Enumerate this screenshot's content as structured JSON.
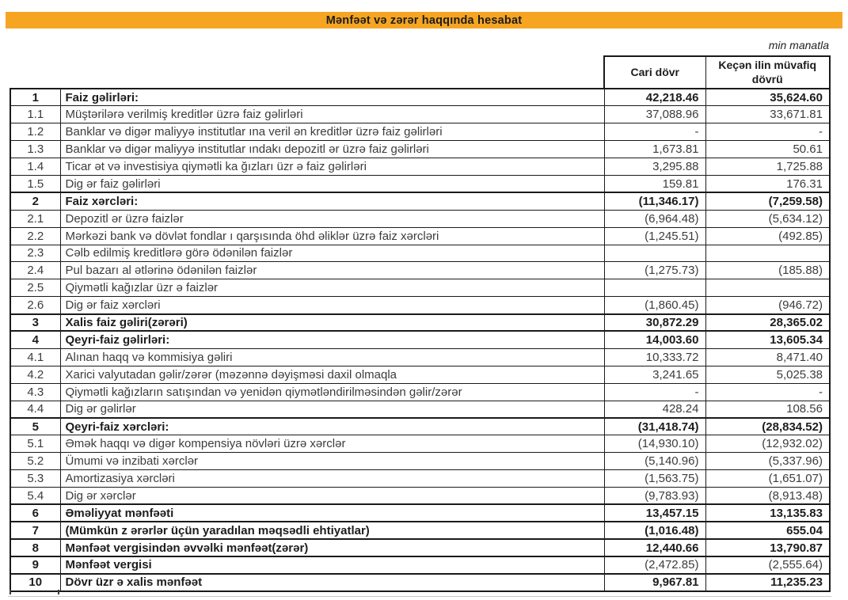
{
  "title": "Mənfəət və zərər haqqında hesabat",
  "unit_note": "min manatla",
  "columns": {
    "current": "Cari dövr",
    "previous": "Keçən ilin müvafiq dövrü"
  },
  "accent_color": "#f6a523",
  "rows": [
    {
      "no": "1",
      "label": "Faiz gəlirləri:",
      "current": "42,218.46",
      "previous": "35,624.60",
      "bold": true
    },
    {
      "no": "1.1",
      "label": "Müştərilərə verilmiş kreditlər üzrə faiz gəlirləri",
      "current": "37,088.96",
      "previous": "33,671.81"
    },
    {
      "no": "1.2",
      "label": "Banklar və digər maliyyə institutlar ına veril ən kreditlər üzrə faiz gəlirləri",
      "current": "-",
      "previous": "-"
    },
    {
      "no": "1.3",
      "label": "Banklar və digər maliyyə institutlar ındakı depozitl ər üzrə faiz gəlirləri",
      "current": "1,673.81",
      "previous": "50.61"
    },
    {
      "no": "1.4",
      "label": "Ticar ət və investisiya qiymətli ka ğızları üzr ə faiz gəlirləri",
      "current": "3,295.88",
      "previous": "1,725.88"
    },
    {
      "no": "1.5",
      "label": "Dig ər faiz gəlirləri",
      "current": "159.81",
      "previous": "176.31"
    },
    {
      "no": "2",
      "label": "Faiz xərcləri:",
      "current": "(11,346.17)",
      "previous": "(7,259.58)",
      "bold": true
    },
    {
      "no": "2.1",
      "label": "Depozitl ər üzrə faizlər",
      "current": "(6,964.48)",
      "previous": "(5,634.12)"
    },
    {
      "no": "2.2",
      "label": "Mərkəzi bank və dövlət fondlar ı qarşısında öhd əliklər üzrə faiz xərcləri",
      "current": "(1,245.51)",
      "previous": "(492.85)"
    },
    {
      "no": "2.3",
      "label": "Cəlb edilmiş kreditlərə görə ödənilən faizlər",
      "current": "",
      "previous": ""
    },
    {
      "no": "2.4",
      "label": "Pul bazarı al ətlərinə ödənilən faizlər",
      "current": "(1,275.73)",
      "previous": "(185.88)"
    },
    {
      "no": "2.5",
      "label": "Qiymətli kağızlar üzr ə faizlər",
      "current": "",
      "previous": ""
    },
    {
      "no": "2.6",
      "label": "Dig ər faiz xərcləri",
      "current": "(1,860.45)",
      "previous": "(946.72)"
    },
    {
      "no": "3",
      "label": "Xalis faiz gəliri(zərəri)",
      "current": "30,872.29",
      "previous": "28,365.02",
      "bold": true
    },
    {
      "no": "4",
      "label": "Qeyri-faiz gəlirləri:",
      "current": "14,003.60",
      "previous": "13,605.34",
      "bold": true
    },
    {
      "no": "4.1",
      "label": "Alınan haqq və kommisiya gəliri",
      "current": "10,333.72",
      "previous": "8,471.40"
    },
    {
      "no": "4.2",
      "label": "Xarici valyutadan gəlir/zərər (məzənnə dəyişməsi daxil olmaqla",
      "current": "3,241.65",
      "previous": "5,025.38"
    },
    {
      "no": "4.3",
      "label": "Qiymətli kağızların satışından və yenidən qiymətləndirilməsindən gəlir/zərər",
      "current": "-",
      "previous": "-"
    },
    {
      "no": "4.4",
      "label": "Dig ər gəlirlər",
      "current": "428.24",
      "previous": "108.56"
    },
    {
      "no": "5",
      "label": "Qeyri-faiz xərcləri:",
      "current": "(31,418.74)",
      "previous": "(28,834.52)",
      "bold": true
    },
    {
      "no": "5.1",
      "label": "Əmək haqqı və digər kompensiya növləri üzrə xərclər",
      "current": "(14,930.10)",
      "previous": "(12,932.02)"
    },
    {
      "no": "5.2",
      "label": "Ümumi və inzibati xərclər",
      "current": "(5,140.96)",
      "previous": "(5,337.96)"
    },
    {
      "no": "5.3",
      "label": "Amortizasiya xərcləri",
      "current": "(1,563.75)",
      "previous": "(1,651.07)"
    },
    {
      "no": "5.4",
      "label": "Dig ər xərclər",
      "current": "(9,783.93)",
      "previous": "(8,913.48)"
    },
    {
      "no": "6",
      "label": "Əməliyyat mənfəəti",
      "current": "13,457.15",
      "previous": "13,135.83",
      "bold": true
    },
    {
      "no": "7",
      "label": "(Mümkün z ərərlər üçün yaradılan məqsədli ehtiyatlar)",
      "current": "(1,016.48)",
      "previous": "655.04",
      "bold": true
    },
    {
      "no": "8",
      "label": "Mənfəət vergisindən əvvəlki mənfəət(zərər)",
      "current": "12,440.66",
      "previous": "13,790.87",
      "bold": true
    },
    {
      "no": "9",
      "label": "Mənfəət vergisi",
      "current": "(2,472.85)",
      "previous": "(2,555.64)",
      "bold": true,
      "value_bold": false
    },
    {
      "no": "10",
      "label": "Dövr üzr ə xalis mənfəət",
      "current": "9,967.81",
      "previous": "11,235.23",
      "bold": true
    }
  ]
}
